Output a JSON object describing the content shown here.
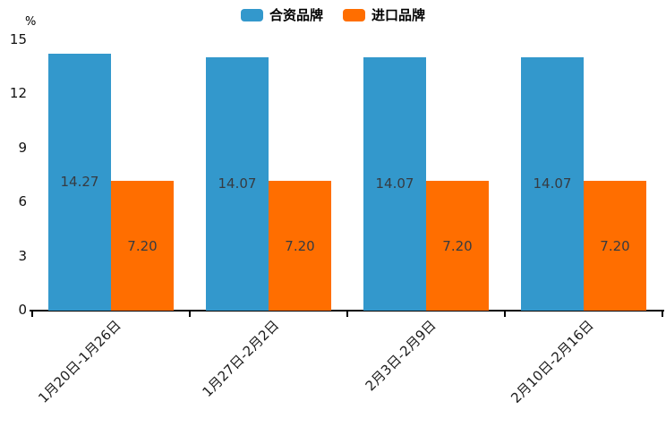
{
  "chart_data": {
    "type": "bar",
    "title": "",
    "unit_label": "%",
    "categories": [
      "1月20日-1月26日",
      "1月27日-2月2日",
      "2月3日-2月9日",
      "2月10日-2月16日"
    ],
    "series": [
      {
        "name": "合资品牌",
        "color": "#3398cc",
        "values": [
          14.27,
          14.07,
          14.07,
          14.07
        ],
        "labels": [
          "14.27",
          "14.07",
          "14.07",
          "14.07"
        ]
      },
      {
        "name": "进口品牌",
        "color": "#ff6e00",
        "values": [
          7.2,
          7.2,
          7.2,
          7.2
        ],
        "labels": [
          "7.20",
          "7.20",
          "7.20",
          "7.20"
        ]
      }
    ],
    "y_axis": {
      "min": 0,
      "max": 15,
      "ticks": [
        0,
        3,
        6,
        9,
        12,
        15
      ]
    },
    "grid": false,
    "legend_position": "top-center",
    "value_label_color": "#363b41",
    "axis_color": "#000000",
    "background": "#ffffff"
  }
}
